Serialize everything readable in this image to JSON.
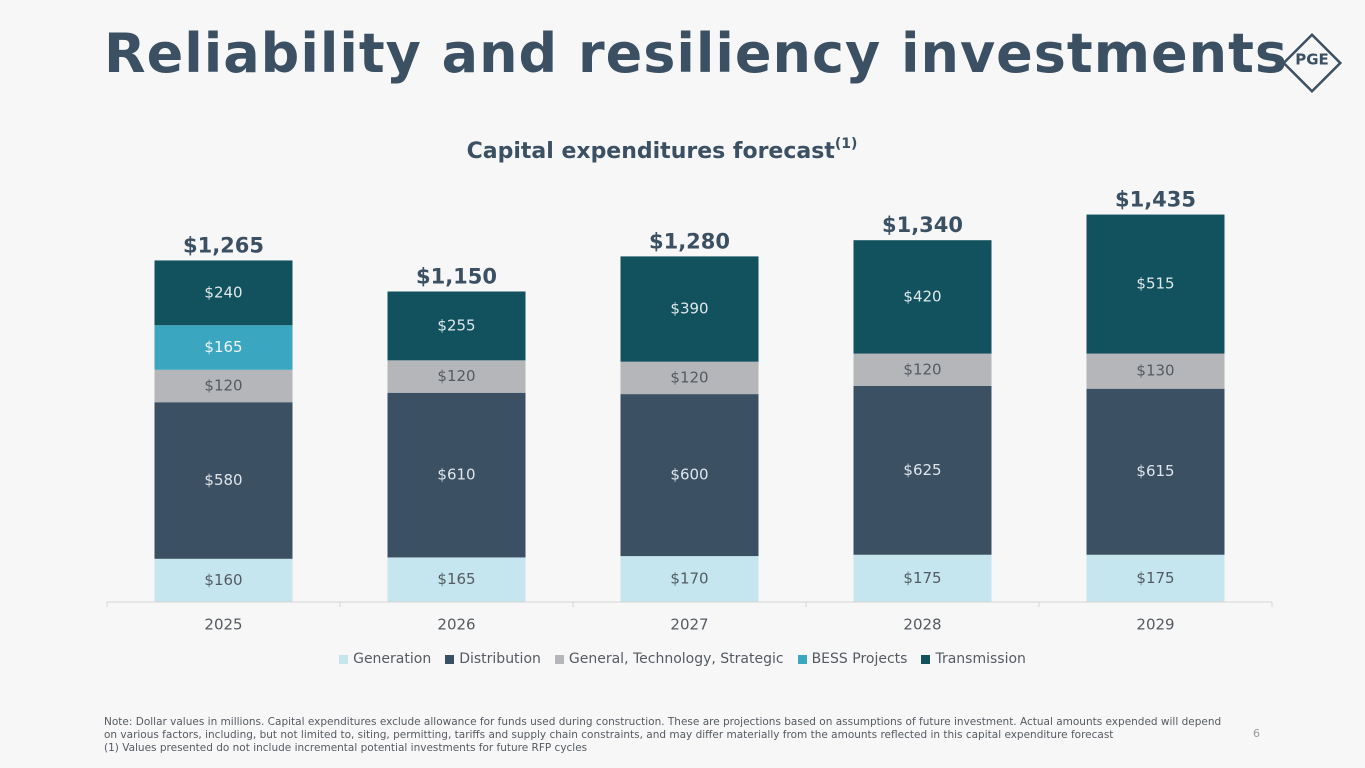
{
  "header": {
    "title": "Reliability and resiliency investments",
    "logo": "PGE"
  },
  "chart_data": {
    "type": "stacked_bar",
    "title": "Capital expenditures forecast",
    "title_note": "(1)",
    "categories": [
      "2025",
      "2026",
      "2027",
      "2028",
      "2029"
    ],
    "series": [
      {
        "name": "Generation",
        "color": "#c5e6ee",
        "label_color": "#555b62",
        "values": [
          160,
          165,
          170,
          175,
          175
        ],
        "value_labels": [
          "$160",
          "$165",
          "$170",
          "$175",
          "$175"
        ]
      },
      {
        "name": "Distribution",
        "color": "#3c5064",
        "label_color": "#dfe5ea",
        "values": [
          580,
          610,
          600,
          625,
          615
        ],
        "value_labels": [
          "$580",
          "$610",
          "$600",
          "$625",
          "$615"
        ]
      },
      {
        "name": "General, Technology, Strategic",
        "color": "#b4b6ba",
        "label_color": "#555b62",
        "values": [
          120,
          120,
          120,
          120,
          130
        ],
        "value_labels": [
          "$120",
          "$120",
          "$120",
          "$120",
          "$130"
        ]
      },
      {
        "name": "BESS Projects",
        "color": "#3aa6c0",
        "label_color": "#eef6f8",
        "values": [
          165,
          null,
          null,
          null,
          null
        ],
        "value_labels": [
          "$165",
          null,
          null,
          null,
          null
        ]
      },
      {
        "name": "Transmission",
        "color": "#12525e",
        "label_color": "#dfe8ea",
        "values": [
          240,
          255,
          390,
          420,
          515
        ],
        "value_labels": [
          "$240",
          "$255",
          "$390",
          "$420",
          "$515"
        ]
      }
    ],
    "totals": {
      "values": [
        1265,
        1150,
        1280,
        1340,
        1435
      ],
      "value_labels": [
        "$1,265",
        "$1,150",
        "$1,280",
        "$1,340",
        "$1,435"
      ]
    },
    "ylim": [
      0,
      1600
    ],
    "legend": "bottom"
  },
  "footer": {
    "notes": [
      "Note: Dollar values in millions. Capital expenditures exclude allowance for funds used during construction. These are projections based on assumptions of future investment. Actual amounts expended will depend",
      "on various factors, including, but not limited to, siting, permitting, tariffs and supply chain constraints, and may differ materially from the amounts reflected in this capital expenditure forecast",
      "(1) Values presented do not include incremental potential investments for future RFP cycles"
    ],
    "page": "6"
  }
}
